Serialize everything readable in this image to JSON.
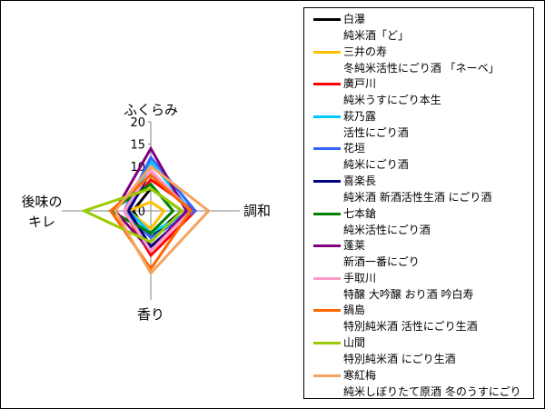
{
  "chart_data": {
    "type": "radar",
    "axes": [
      "ふくらみ",
      "調和",
      "香り",
      "後味のキレ"
    ],
    "axis_label_lines": {
      "ふくらみ": [
        "ふくらみ"
      ],
      "調和": [
        "調和"
      ],
      "香り": [
        "香り"
      ],
      "後味のキレ": [
        "後味の",
        "キレ"
      ]
    },
    "rlim": [
      0,
      20
    ],
    "ticks": [
      "0",
      "5",
      "10",
      "15",
      "20"
    ],
    "grid": false,
    "legend_position": "right",
    "series": [
      {
        "name": "白瀑",
        "desc": "純米酒「ど」",
        "color": "#000000",
        "values": [
          5,
          7,
          6,
          4
        ]
      },
      {
        "name": "三井の寿",
        "desc": "冬純米活性にごり酒 「ネーベ」",
        "color": "#ffc000",
        "values": [
          2,
          3,
          4,
          5
        ]
      },
      {
        "name": "廣戸川",
        "desc": "純米うすにごり本生",
        "color": "#ff0000",
        "values": [
          7,
          10,
          10,
          6
        ]
      },
      {
        "name": "萩乃露",
        "desc": "活性にごり酒",
        "color": "#00c8ff",
        "values": [
          11,
          9,
          5,
          5
        ]
      },
      {
        "name": "花垣",
        "desc": "純米にごり酒",
        "color": "#3366ff",
        "values": [
          12,
          10,
          6,
          6
        ]
      },
      {
        "name": "喜楽長",
        "desc": "純米酒 新酒活性生酒 にごり酒",
        "color": "#000080",
        "values": [
          9,
          9,
          8,
          5
        ]
      },
      {
        "name": "七本鎗",
        "desc": "純米活性にごり酒",
        "color": "#008000",
        "values": [
          6,
          5,
          5,
          9
        ]
      },
      {
        "name": "蓬莱",
        "desc": "新酒一番にごり",
        "color": "#800080",
        "values": [
          14,
          8,
          9,
          8
        ]
      },
      {
        "name": "手取川",
        "desc": "特醸 大吟醸 おり酒 吟白寿",
        "color": "#ff99cc",
        "values": [
          9,
          9,
          9,
          6
        ]
      },
      {
        "name": "鍋島",
        "desc": "特別純米酒 活性にごり生酒",
        "color": "#ff6600",
        "values": [
          8,
          9,
          13,
          9
        ]
      },
      {
        "name": "山間",
        "desc": "特別純米酒 にごり生酒",
        "color": "#99cc00",
        "values": [
          5,
          7,
          7,
          15
        ]
      },
      {
        "name": "寒紅梅",
        "desc": "純米しぼりたて原酒 冬のうすにごり",
        "color": "#f4a460",
        "values": [
          10,
          13,
          14,
          8
        ]
      }
    ]
  }
}
